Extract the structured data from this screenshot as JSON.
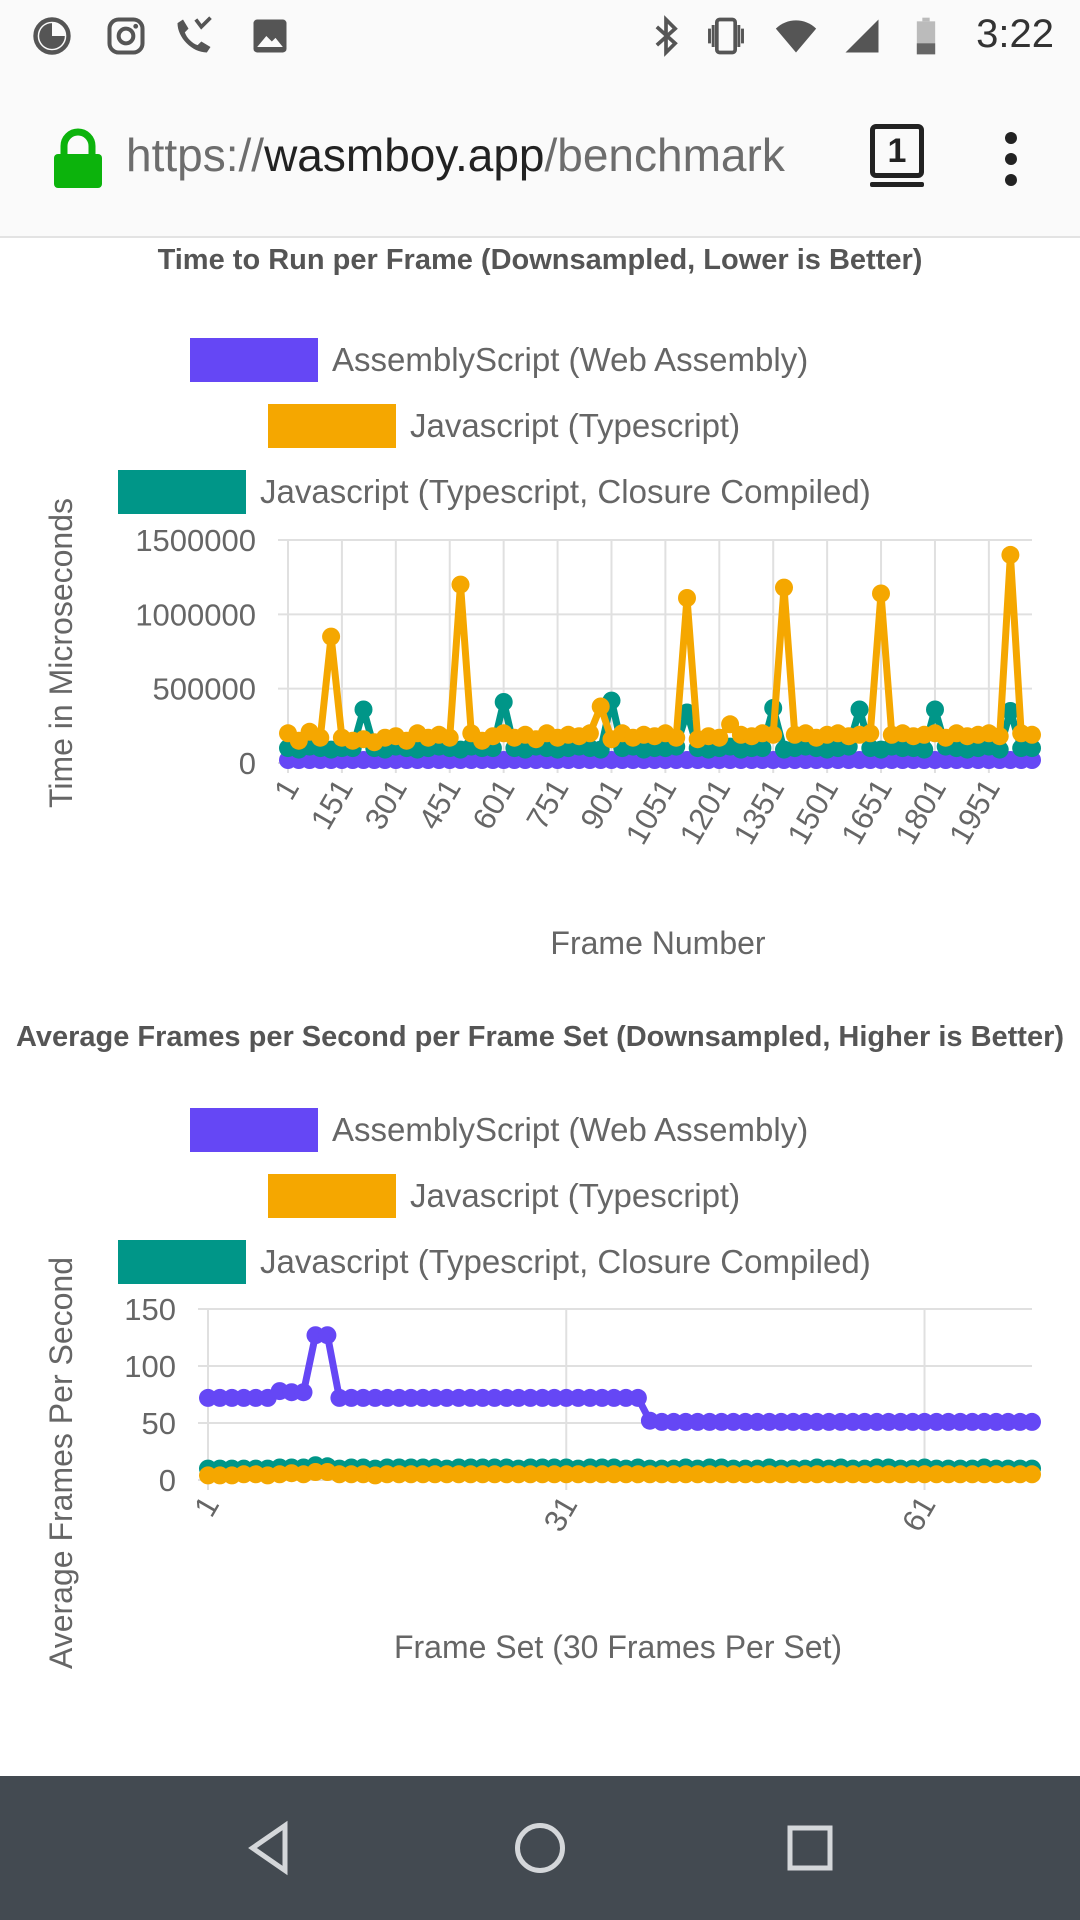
{
  "status_bar": {
    "time": "3:22",
    "left_icons": [
      "data-saver-icon",
      "instagram-icon",
      "missed-call-icon",
      "image-icon"
    ],
    "right_icons": [
      "bluetooth-icon",
      "vibrate-icon",
      "wifi-icon",
      "cellular-signal-icon",
      "battery-icon"
    ]
  },
  "browser": {
    "url_scheme": "https://",
    "url_host": "wasmboy.app",
    "url_path": "/benchmark",
    "tab_count": "1",
    "icons": [
      "lock-icon",
      "menu-icon"
    ]
  },
  "colors": {
    "wasm": "#6547f5",
    "js": "#f5a700",
    "closure": "#009688",
    "grid": "#e0e0e0",
    "text": "#666666",
    "title": "#555555"
  },
  "chart_data": [
    {
      "type": "line",
      "title": "Time to Run per Frame (Downsampled, Lower is Better)",
      "xlabel": "Frame Number",
      "ylabel": "Time in Microseconds",
      "ylim": [
        0,
        1500000
      ],
      "yticks": [
        "1500000",
        "1000000",
        "500000",
        "0"
      ],
      "xticks": [
        "1",
        "151",
        "301",
        "451",
        "601",
        "751",
        "901",
        "1051",
        "1201",
        "1351",
        "1501",
        "1651",
        "1801",
        "1951"
      ],
      "x_start": 1,
      "x_step": 30,
      "legend": "top",
      "grid": true,
      "series": [
        {
          "name": "AssemblyScript (Web Assembly)",
          "color_key": "wasm",
          "values": [
            20000,
            20000,
            20000,
            20000,
            20000,
            20000,
            20000,
            20000,
            20000,
            20000,
            20000,
            20000,
            20000,
            20000,
            20000,
            20000,
            20000,
            20000,
            20000,
            20000,
            20000,
            20000,
            20000,
            20000,
            20000,
            20000,
            20000,
            20000,
            20000,
            20000,
            20000,
            20000,
            20000,
            20000,
            20000,
            20000,
            20000,
            20000,
            20000,
            20000,
            20000,
            20000,
            20000,
            20000,
            20000,
            20000,
            20000,
            20000,
            20000,
            20000,
            20000,
            20000,
            20000,
            20000,
            20000,
            20000,
            20000,
            20000,
            20000,
            20000,
            20000,
            20000,
            20000,
            20000,
            20000,
            20000,
            20000,
            20000,
            20000,
            20000
          ]
        },
        {
          "name": "Javascript (Typescript)",
          "color_key": "js",
          "values": [
            200000,
            150000,
            210000,
            170000,
            850000,
            170000,
            150000,
            160000,
            140000,
            170000,
            180000,
            150000,
            200000,
            170000,
            190000,
            170000,
            1200000,
            200000,
            150000,
            180000,
            200000,
            170000,
            190000,
            160000,
            200000,
            170000,
            190000,
            180000,
            200000,
            380000,
            160000,
            200000,
            170000,
            190000,
            180000,
            200000,
            170000,
            1110000,
            160000,
            180000,
            170000,
            260000,
            190000,
            180000,
            200000,
            190000,
            1180000,
            190000,
            200000,
            170000,
            190000,
            200000,
            180000,
            190000,
            200000,
            1140000,
            190000,
            200000,
            180000,
            190000,
            200000,
            170000,
            200000,
            180000,
            190000,
            200000,
            180000,
            1400000,
            200000,
            190000
          ]
        },
        {
          "name": "Javascript (Typescript, Closure Compiled)",
          "color_key": "closure",
          "values": [
            100000,
            90000,
            110000,
            100000,
            90000,
            100000,
            100000,
            360000,
            100000,
            90000,
            110000,
            100000,
            90000,
            100000,
            110000,
            100000,
            90000,
            110000,
            100000,
            100000,
            410000,
            100000,
            90000,
            110000,
            100000,
            90000,
            100000,
            110000,
            100000,
            90000,
            420000,
            100000,
            110000,
            90000,
            100000,
            100000,
            110000,
            340000,
            100000,
            90000,
            100000,
            110000,
            90000,
            100000,
            100000,
            370000,
            90000,
            100000,
            110000,
            100000,
            90000,
            100000,
            110000,
            360000,
            100000,
            90000,
            110000,
            100000,
            100000,
            90000,
            360000,
            110000,
            100000,
            90000,
            100000,
            110000,
            90000,
            350000,
            100000,
            100000
          ]
        }
      ]
    },
    {
      "type": "line",
      "title": "Average Frames per Second per Frame Set (Downsampled, Higher is Better)",
      "xlabel": "Frame Set (30 Frames Per Set)",
      "ylabel": "Average Frames Per Second",
      "ylim": [
        0,
        150
      ],
      "yticks": [
        "150",
        "100",
        "50",
        "0"
      ],
      "xticks": [
        "1",
        "31",
        "61"
      ],
      "x_start": 1,
      "x_step": 1,
      "legend": "top",
      "grid": true,
      "series": [
        {
          "name": "AssemblyScript (Web Assembly)",
          "color_key": "wasm",
          "values": [
            72,
            72,
            72,
            72,
            72,
            72,
            78,
            77,
            77,
            127,
            127,
            72,
            72,
            72,
            72,
            72,
            72,
            72,
            72,
            72,
            72,
            72,
            72,
            72,
            72,
            72,
            72,
            72,
            72,
            72,
            72,
            72,
            72,
            72,
            72,
            72,
            72,
            52,
            51,
            51,
            51,
            51,
            51,
            51,
            51,
            51,
            51,
            51,
            51,
            51,
            51,
            51,
            51,
            51,
            51,
            51,
            51,
            51,
            51,
            51,
            51,
            51,
            51,
            51,
            51,
            51,
            51,
            51,
            51,
            51
          ]
        },
        {
          "name": "Javascript (Typescript)",
          "color_key": "js",
          "values": [
            4,
            4,
            4,
            5,
            5,
            4,
            5,
            6,
            5,
            7,
            7,
            5,
            5,
            5,
            4,
            5,
            5,
            5,
            5,
            5,
            5,
            5,
            5,
            5,
            5,
            5,
            5,
            5,
            5,
            5,
            5,
            5,
            5,
            5,
            5,
            5,
            5,
            5,
            5,
            5,
            5,
            5,
            5,
            5,
            5,
            5,
            5,
            5,
            5,
            5,
            5,
            5,
            5,
            5,
            5,
            5,
            5,
            5,
            5,
            5,
            5,
            5,
            5,
            5,
            5,
            5,
            5,
            5,
            5,
            5
          ]
        },
        {
          "name": "Javascript (Typescript, Closure Compiled)",
          "color_key": "closure",
          "values": [
            10,
            10,
            10,
            10,
            10,
            10,
            11,
            11,
            11,
            13,
            12,
            10,
            11,
            11,
            10,
            11,
            11,
            11,
            11,
            11,
            10,
            11,
            11,
            11,
            11,
            11,
            10,
            11,
            11,
            11,
            11,
            10,
            11,
            11,
            11,
            10,
            11,
            10,
            10,
            10,
            11,
            10,
            11,
            11,
            10,
            10,
            10,
            11,
            10,
            10,
            10,
            11,
            10,
            11,
            10,
            10,
            11,
            11,
            10,
            10,
            11,
            10,
            10,
            10,
            10,
            11,
            10,
            10,
            10,
            10
          ]
        }
      ]
    }
  ]
}
